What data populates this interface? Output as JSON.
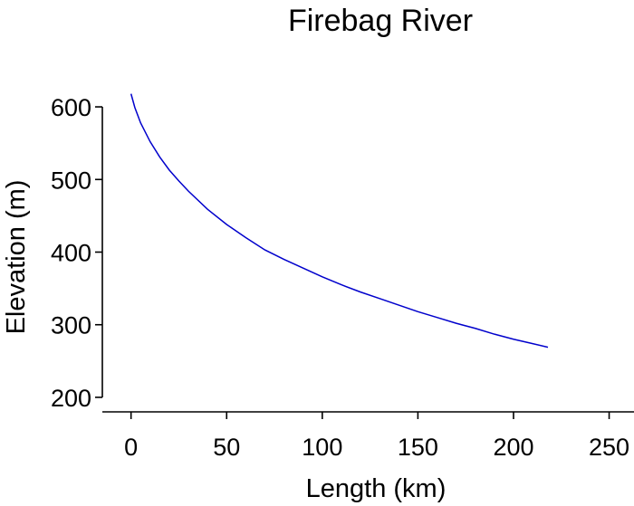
{
  "chart_data": {
    "type": "line",
    "title": "Firebag River",
    "xlabel": "Length (km)",
    "ylabel": "Elevation (m)",
    "xlim": [
      -15,
      263
    ],
    "ylim": [
      180,
      625
    ],
    "x_ticks": [
      0,
      50,
      100,
      150,
      200,
      250
    ],
    "y_ticks": [
      200,
      300,
      400,
      500,
      600
    ],
    "grid": false,
    "line_color": "#0000cc",
    "series": [
      {
        "x": [
          0,
          2,
          5,
          10,
          15,
          20,
          25,
          30,
          40,
          50,
          60,
          70,
          80,
          90,
          100,
          110,
          120,
          130,
          140,
          150,
          160,
          170,
          180,
          190,
          200,
          210,
          218
        ],
        "values": [
          618,
          599,
          578,
          552,
          531,
          513,
          498,
          484,
          459,
          438,
          420,
          403,
          390,
          378,
          366,
          355,
          345,
          336,
          327,
          318,
          310,
          302,
          295,
          287,
          280,
          274,
          269
        ]
      }
    ]
  }
}
